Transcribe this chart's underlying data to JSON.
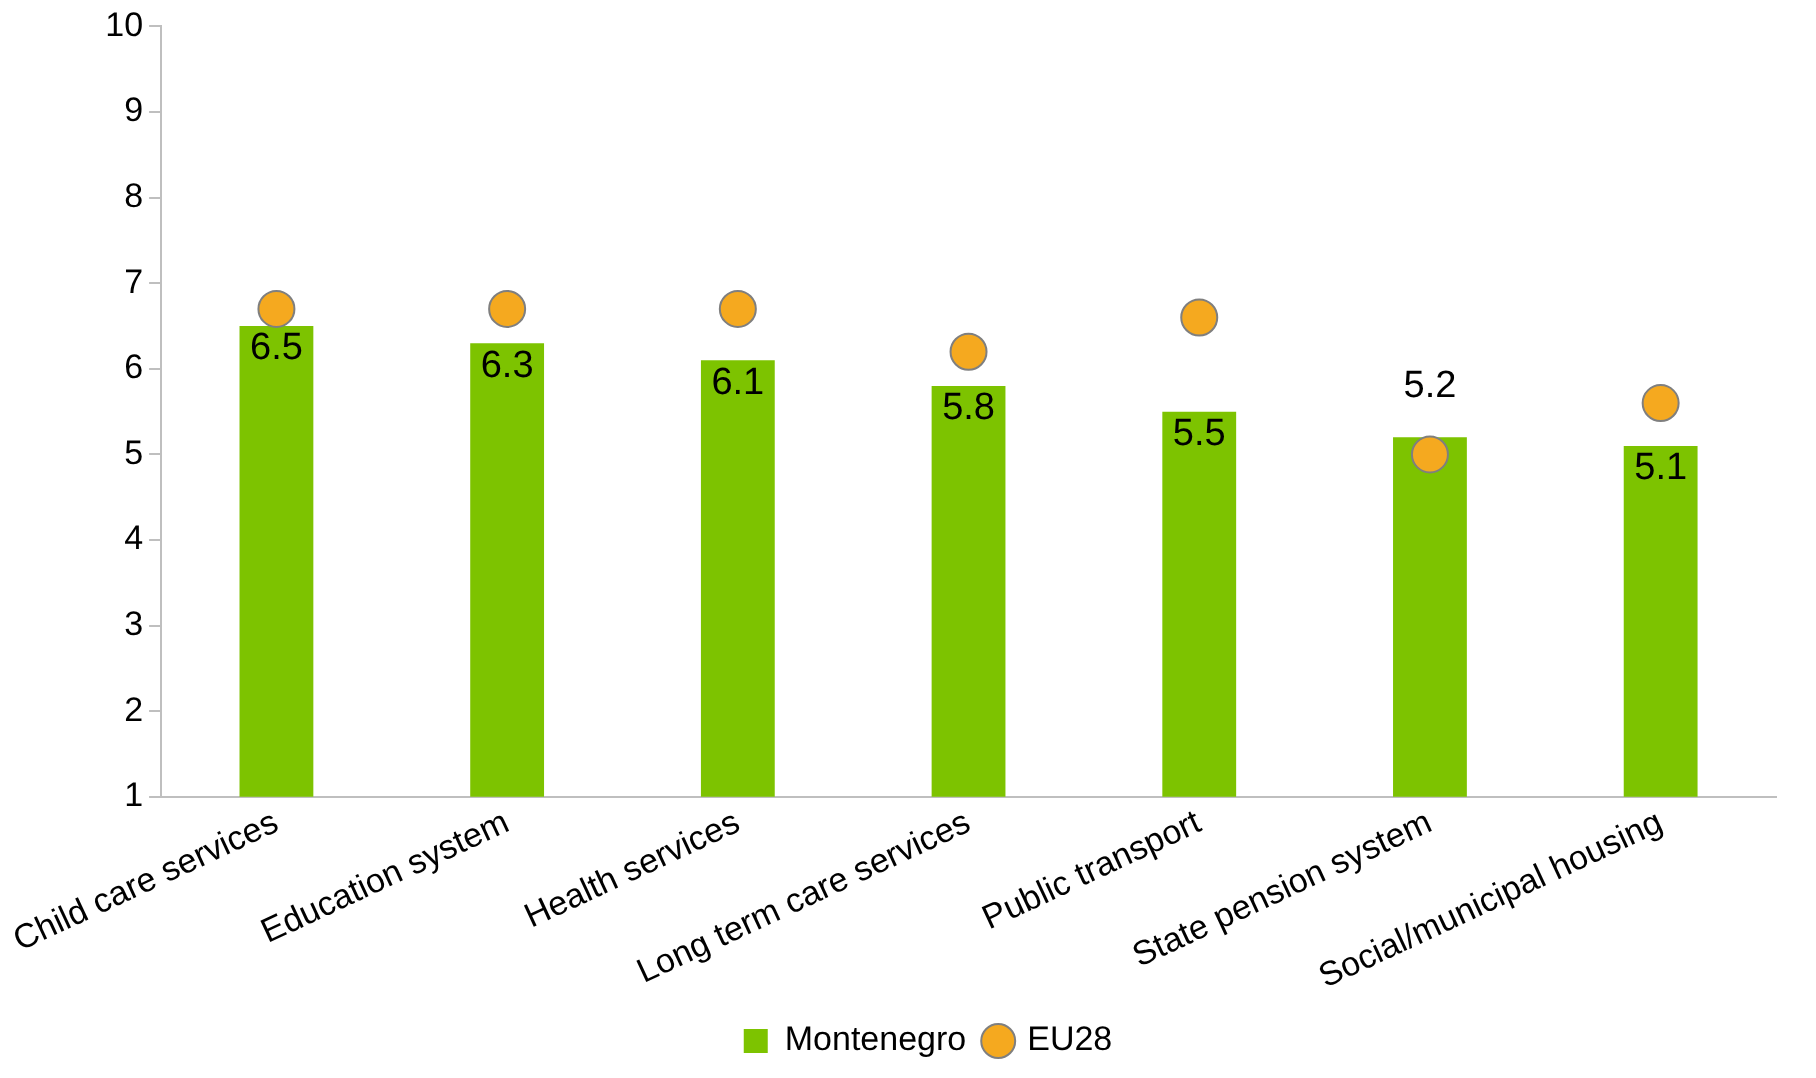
{
  "chart_data": {
    "type": "bar",
    "categories": [
      "Child care services",
      "Education system",
      "Health services",
      "Long term care services",
      "Public transport",
      "State pension system",
      "Social/municipal housing"
    ],
    "series": [
      {
        "name": "Montenegro",
        "color": "#7dc300",
        "values": [
          6.5,
          6.3,
          6.1,
          5.8,
          5.5,
          5.2,
          5.1
        ],
        "value_labels": [
          "6.5",
          "6.3",
          "6.1",
          "5.8",
          "5.5",
          "5.2",
          "5.1"
        ]
      },
      {
        "name": "EU28",
        "type": "scatter",
        "color": "#f5a91f",
        "marker": "circle",
        "x": [
          "Child care services",
          "Education system",
          "Health services",
          "Long term care services",
          "Public transport",
          "State pension system",
          "Social/municipal housing"
        ],
        "values": [
          6.7,
          6.7,
          6.7,
          6.2,
          6.6,
          5.0,
          5.6
        ]
      }
    ],
    "ylim": [
      1,
      10
    ],
    "yticks": [
      1,
      2,
      3,
      4,
      5,
      6,
      7,
      8,
      9,
      10
    ],
    "grid": false,
    "legend": "bottom"
  }
}
